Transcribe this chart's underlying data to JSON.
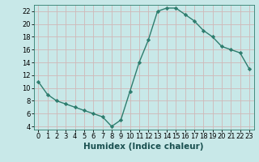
{
  "x": [
    0,
    1,
    2,
    3,
    4,
    5,
    6,
    7,
    8,
    9,
    10,
    11,
    12,
    13,
    14,
    15,
    16,
    17,
    18,
    19,
    20,
    21,
    22,
    23
  ],
  "y": [
    11,
    9,
    8,
    7.5,
    7,
    6.5,
    6,
    5.5,
    4,
    5,
    9.5,
    14,
    17.5,
    22,
    22.5,
    22.5,
    21.5,
    20.5,
    19,
    18,
    16.5,
    16,
    15.5,
    13
  ],
  "line_color": "#2e7d6e",
  "marker_color": "#2e7d6e",
  "bg_color": "#c8e8e8",
  "grid_color": "#b8d8d8",
  "xlabel": "Humidex (Indice chaleur)",
  "ylim": [
    3.5,
    23
  ],
  "xlim": [
    -0.5,
    23.5
  ],
  "yticks": [
    4,
    6,
    8,
    10,
    12,
    14,
    16,
    18,
    20,
    22
  ],
  "xticks": [
    0,
    1,
    2,
    3,
    4,
    5,
    6,
    7,
    8,
    9,
    10,
    11,
    12,
    13,
    14,
    15,
    16,
    17,
    18,
    19,
    20,
    21,
    22,
    23
  ],
  "tick_fontsize": 6,
  "label_fontsize": 7.5
}
